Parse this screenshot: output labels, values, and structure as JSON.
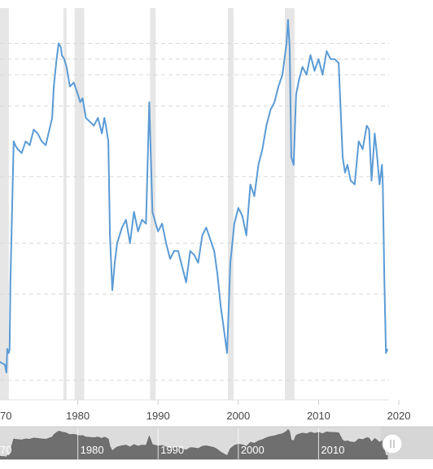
{
  "chart_data": {
    "type": "line",
    "title": "",
    "xlabel": "",
    "ylabel": "",
    "xlim": [
      1970,
      2019.3
    ],
    "ylim": [
      0,
      100
    ],
    "grid": true,
    "legend": "none",
    "x_ticks": [
      "70",
      "1980",
      "1990",
      "2000",
      "2010",
      "2020"
    ],
    "x_tick_values": [
      1970,
      1980,
      1990,
      2000,
      2010,
      2020
    ],
    "y_gridlines": [
      5,
      27,
      40,
      57,
      75,
      83,
      87,
      91
    ],
    "recessions": [
      [
        1970.1,
        1971.4
      ],
      [
        1978.2,
        1978.6
      ],
      [
        1979.6,
        1980.8
      ],
      [
        1989.0,
        1989.7
      ],
      [
        1998.7,
        1999.4
      ],
      [
        2005.8,
        2007.0
      ]
    ],
    "series": [
      {
        "color": "#5b9bd5",
        "x": [
          1970.0,
          1970.9,
          1971.1,
          1971.2,
          1971.4,
          1971.5,
          1971.6,
          1972.0,
          1972.2,
          1972.5,
          1973.0,
          1973.5,
          1974.0,
          1974.5,
          1975.0,
          1975.5,
          1976.0,
          1976.8,
          1977.0,
          1977.3,
          1977.6,
          1977.9,
          1978.0,
          1978.3,
          1978.6,
          1979.0,
          1979.5,
          1980.0,
          1980.3,
          1980.6,
          1981.0,
          1981.5,
          1982.0,
          1982.5,
          1983.0,
          1983.3,
          1983.5,
          1983.8,
          1984.0,
          1984.3,
          1984.6,
          1984.9,
          1985.2,
          1985.5,
          1986.0,
          1986.5,
          1987.0,
          1987.5,
          1988.0,
          1988.5,
          1988.9,
          1989.3,
          1989.7,
          1990.0,
          1990.5,
          1991.0,
          1991.5,
          1992.0,
          1992.5,
          1993.0,
          1993.5,
          1994.0,
          1994.5,
          1995.0,
          1995.5,
          1996.0,
          1996.5,
          1997.0,
          1997.4,
          1997.8,
          1998.2,
          1998.6,
          1999.0,
          1999.5,
          2000.0,
          2000.5,
          2001.0,
          2001.5,
          2002.0,
          2002.5,
          2003.0,
          2003.5,
          2004.0,
          2004.5,
          2005.0,
          2005.5,
          2006.0,
          2006.2,
          2006.4,
          2006.6,
          2006.9,
          2007.2,
          2007.6,
          2008.0,
          2008.5,
          2009.0,
          2009.5,
          2010.0,
          2010.5,
          2011.0,
          2011.5,
          2012.0,
          2012.5,
          2013.0,
          2013.3,
          2013.6,
          2014.0,
          2014.5,
          2015.0,
          2015.5,
          2016.0,
          2016.3,
          2016.6,
          2017.0,
          2017.3,
          2017.6,
          2017.9,
          2018.0,
          2018.2,
          2018.4,
          2018.6
        ],
        "y": [
          10,
          9,
          7,
          13,
          12,
          13,
          30,
          66,
          65,
          64,
          63,
          66,
          65,
          69,
          68,
          66,
          65,
          72,
          80,
          86,
          91,
          90,
          88,
          87,
          85,
          80,
          81,
          78,
          76,
          77,
          72,
          71,
          70,
          72,
          68,
          72,
          70,
          66,
          42,
          28,
          35,
          40,
          42,
          44,
          46,
          40,
          48,
          43,
          46,
          45,
          76,
          48,
          45,
          43,
          45,
          40,
          36,
          38,
          38,
          34,
          30,
          38,
          37,
          35,
          42,
          44,
          41,
          38,
          32,
          24,
          18,
          12,
          35,
          45,
          49,
          47,
          42,
          55,
          52,
          60,
          64,
          70,
          74,
          76,
          80,
          83,
          91,
          97,
          90,
          62,
          60,
          78,
          82,
          85,
          83,
          88,
          84,
          87,
          83,
          89,
          87,
          87,
          86,
          62,
          58,
          60,
          56,
          55,
          66,
          64,
          70,
          69,
          56,
          68,
          62,
          55,
          60,
          55,
          30,
          12,
          13
        ]
      }
    ],
    "navigator": {
      "x_ticks": [
        "70",
        "1980",
        "1990",
        "2000",
        "2010"
      ],
      "x_tick_values": [
        1970,
        1980,
        1990,
        2000,
        2010
      ]
    }
  }
}
